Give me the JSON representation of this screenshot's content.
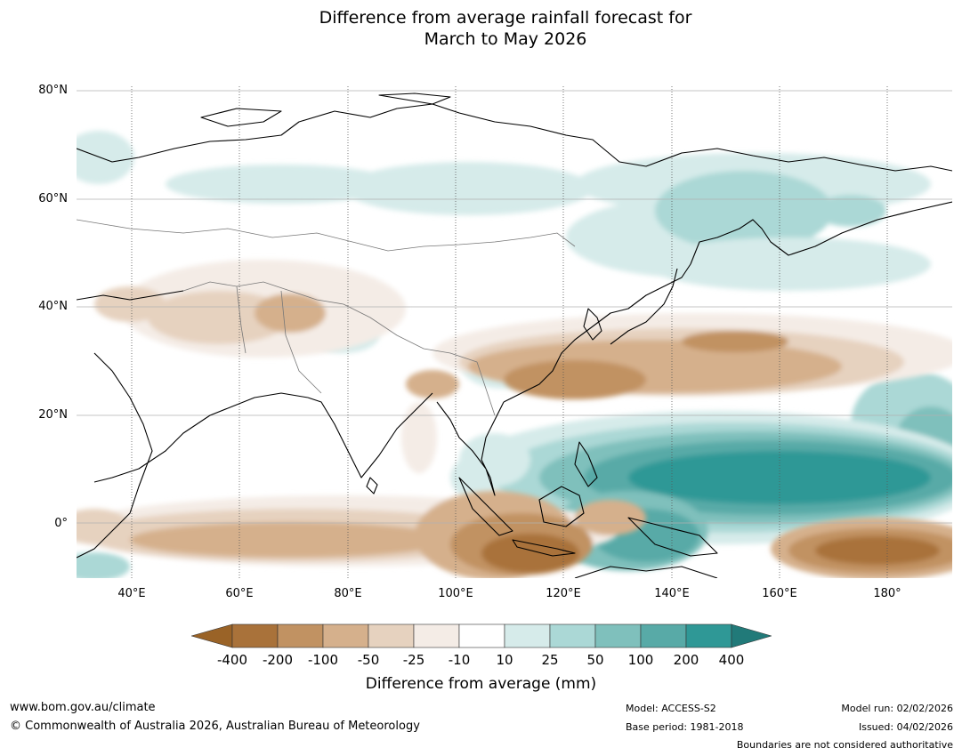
{
  "title": {
    "line1": "Difference from average rainfall forecast for",
    "line2": "March to May 2026"
  },
  "map": {
    "latitude_labels": [
      "80°N",
      "60°N",
      "40°N",
      "20°N",
      "0°"
    ],
    "longitude_labels": [
      "40°E",
      "60°E",
      "80°E",
      "100°E",
      "120°E",
      "140°E",
      "160°E",
      "180°"
    ]
  },
  "legend": {
    "title": "Difference from average (mm)",
    "ticks": [
      "-400",
      "-200",
      "-100",
      "-50",
      "-25",
      "-10",
      "10",
      "25",
      "50",
      "100",
      "200",
      "400"
    ],
    "colors": {
      "below_extend": "#9a6327",
      "m400_200": "#a9723a",
      "m200_100": "#c19262",
      "m100_50": "#d5b08c",
      "m50_25": "#e6d2bf",
      "m25_10": "#f4ece6",
      "m10_10": "#ffffff",
      "p10_25": "#d6ebea",
      "p25_50": "#abd8d6",
      "p50_100": "#7fc0bc",
      "p100_200": "#58aaa7",
      "p200_400": "#2f9896",
      "above_extend": "#217a79"
    }
  },
  "footer": {
    "website": "www.bom.gov.au/climate",
    "copyright": "© Commonwealth of Australia 2026, Australian Bureau of Meteorology",
    "model": "Model: ACCESS-S2",
    "base_period": "Base period: 1981-2018",
    "model_run": "Model run: 02/02/2026",
    "issued": "Issued: 04/02/2026",
    "disclaimer": "Boundaries are not considered authoritative"
  }
}
